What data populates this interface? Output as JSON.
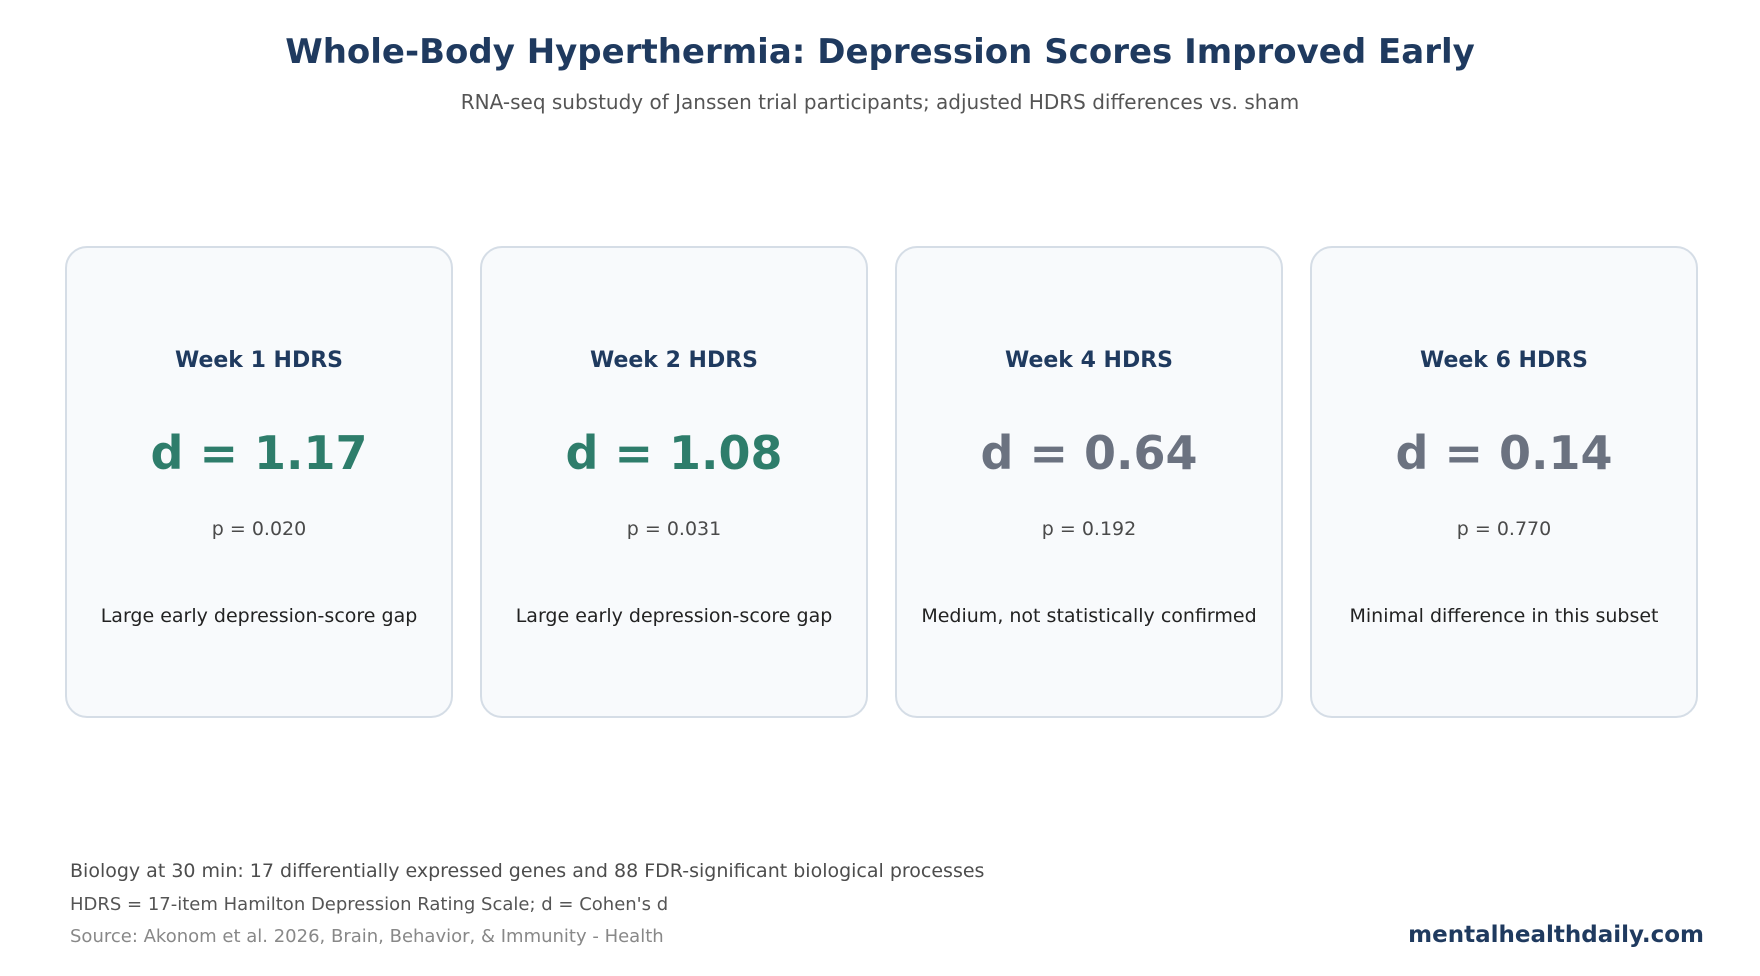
{
  "header": {
    "title": "Whole-Body Hyperthermia: Depression Scores Improved Early",
    "subtitle": "RNA-seq substudy of Janssen trial participants; adjusted HDRS differences vs. sham"
  },
  "colors": {
    "significant": "#2e7d6b",
    "not_significant": "#6b7280"
  },
  "cards": [
    {
      "title": "Week 1 HDRS",
      "effect": "d = 1.17",
      "p_value": "p = 0.020",
      "description": "Large early depression-score gap",
      "significant": true
    },
    {
      "title": "Week 2 HDRS",
      "effect": "d = 1.08",
      "p_value": "p = 0.031",
      "description": "Large early depression-score gap",
      "significant": true
    },
    {
      "title": "Week 4 HDRS",
      "effect": "d = 0.64",
      "p_value": "p = 0.192",
      "description": "Medium, not statistically confirmed",
      "significant": false
    },
    {
      "title": "Week 6 HDRS",
      "effect": "d = 0.14",
      "p_value": "p = 0.770",
      "description": "Minimal difference in this subset",
      "significant": false
    }
  ],
  "footer": {
    "biology_note": "Biology at 30 min: 17 differentially expressed genes and 88 FDR-significant biological processes",
    "hdrs_note": "HDRS = 17-item Hamilton Depression Rating Scale; d = Cohen's d",
    "source": "Source: Akonom et al. 2026, Brain, Behavior, & Immunity - Health",
    "brand": "mentalhealthdaily.com"
  }
}
